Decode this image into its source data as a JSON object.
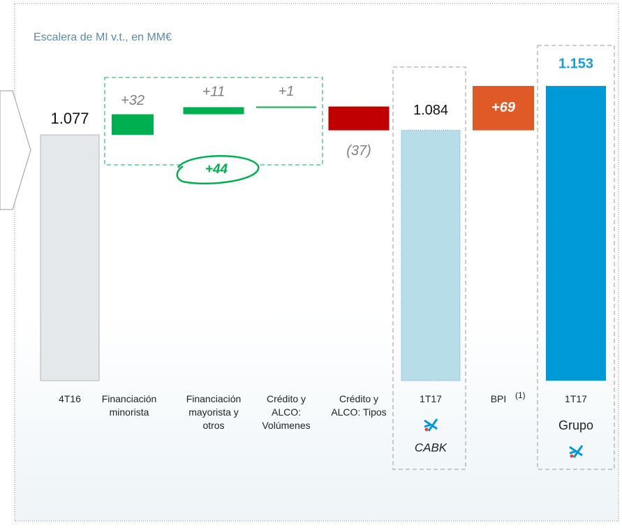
{
  "chart_data": {
    "type": "waterfall",
    "title": "Escalera de MI v.t., en MM€",
    "categories": [
      "4T16",
      "Financiación minorista",
      "Financiación mayorista y otros",
      "Crédito y ALCO: Volúmenes",
      "Crédito y ALCO: Tipos",
      "1T17",
      "BPI",
      "1T17"
    ],
    "measure": [
      "total",
      "relative",
      "relative",
      "relative",
      "relative",
      "total",
      "relative",
      "total"
    ],
    "values": [
      1077,
      32,
      11,
      1,
      -37,
      1084,
      69,
      1153
    ],
    "value_labels": [
      "1.077",
      "+32",
      "+11",
      "+1",
      "(37)",
      "1.084",
      "+69",
      "1.153"
    ],
    "colors": [
      "#e4e8ea",
      "#00b050",
      "#00b050",
      "#00b050",
      "#c00000",
      "#b7dde8",
      "#e05a28",
      "#0099d8"
    ],
    "ylim": [
      695,
      1178
    ],
    "footnote": "(1)",
    "annotations": [
      "+44",
      "CABK",
      "Grupo"
    ]
  }
}
